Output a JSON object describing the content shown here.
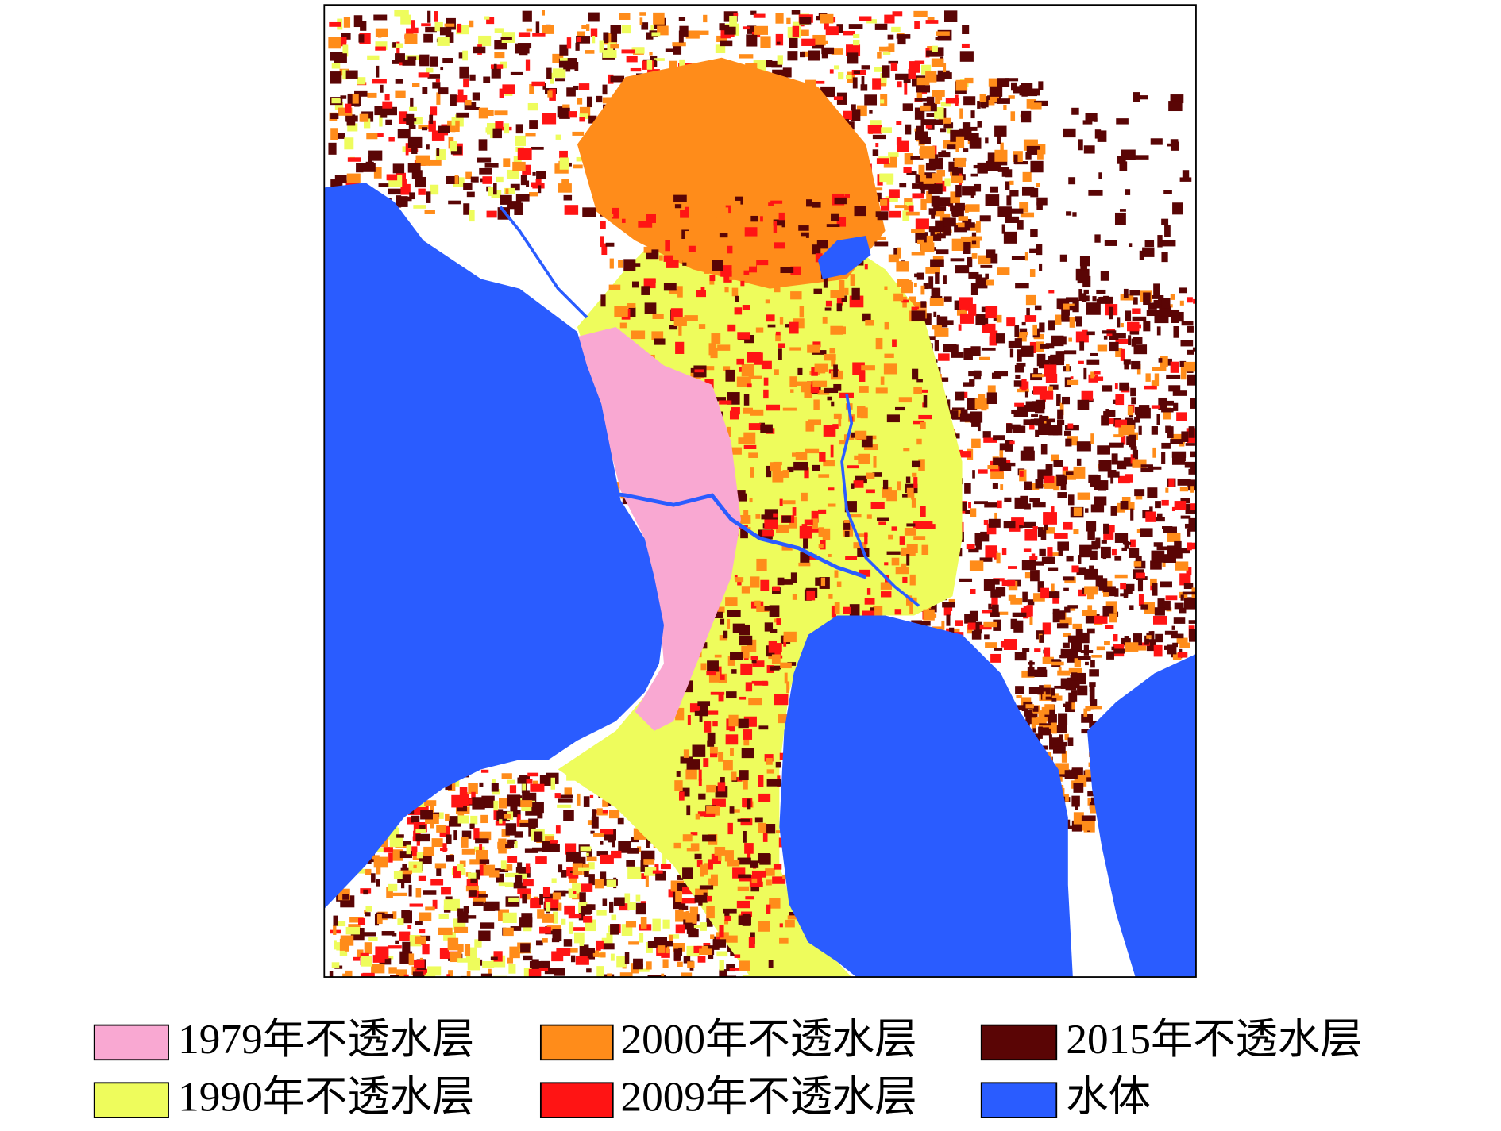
{
  "legend": [
    {
      "label": "1979年不透水层",
      "color": "#f9a8d2"
    },
    {
      "label": "1990年不透水层",
      "color": "#eefc5c"
    },
    {
      "label": "2000年不透水层",
      "color": "#ff8c1a"
    },
    {
      "label": "2009年不透水层",
      "color": "#ff1414"
    },
    {
      "label": "2015年不透水层",
      "color": "#5a0505"
    },
    {
      "label": "水体",
      "color": "#2a5cff"
    }
  ]
}
